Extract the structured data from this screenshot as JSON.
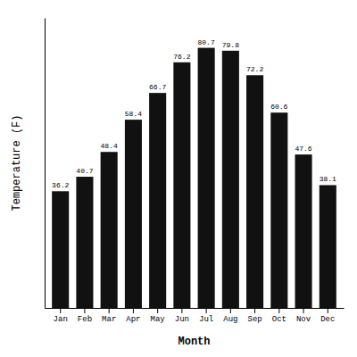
{
  "chart_data": {
    "type": "bar",
    "categories": [
      "Jan",
      "Feb",
      "Mar",
      "Apr",
      "May",
      "Jun",
      "Jul",
      "Aug",
      "Sep",
      "Oct",
      "Nov",
      "Dec"
    ],
    "values": [
      36.2,
      40.7,
      48.4,
      58.4,
      66.7,
      76.2,
      80.7,
      79.8,
      72.2,
      60.6,
      47.6,
      38.1
    ],
    "color": "#111111",
    "xlabel": "Month",
    "ylabel": "Temperature (F)",
    "ylim": [
      0,
      90
    ],
    "tick_labels": "x",
    "data_labels": true,
    "grid": false
  }
}
